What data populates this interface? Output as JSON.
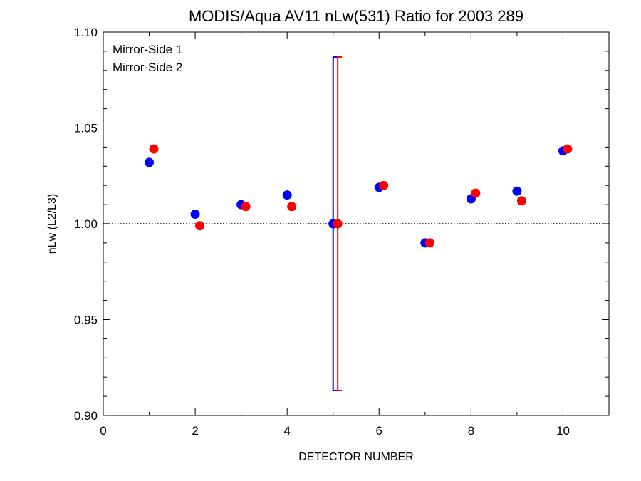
{
  "chart_data": {
    "type": "scatter",
    "title": "MODIS/Aqua AV11 nLw(531) Ratio for 2003 289",
    "xlabel": "DETECTOR NUMBER",
    "ylabel": "nLw (L2/L3)",
    "xlim": [
      0,
      11
    ],
    "ylim": [
      0.9,
      1.1
    ],
    "xticks": [
      0,
      2,
      4,
      6,
      8,
      10
    ],
    "xtick_labels": [
      "0",
      "2",
      "4",
      "6",
      "8",
      "10"
    ],
    "yticks": [
      0.9,
      0.95,
      1.0,
      1.05,
      1.1
    ],
    "ytick_labels": [
      "0.90",
      "0.95",
      "1.00",
      "1.05",
      "1.10"
    ],
    "reference_line": 1.0,
    "legend_position": "top-left",
    "series": [
      {
        "name": "Mirror-Side 1",
        "color": "#0000ff",
        "x": [
          1,
          2,
          3,
          4,
          5,
          6,
          7,
          8,
          9,
          10
        ],
        "y": [
          1.032,
          1.005,
          1.01,
          1.015,
          1.0,
          1.019,
          0.99,
          1.013,
          1.017,
          1.038
        ],
        "errorbar": {
          "x": 5,
          "low": 0.913,
          "high": 1.087
        }
      },
      {
        "name": "Mirror-Side 2",
        "color": "#ff0000",
        "x": [
          1.1,
          2.1,
          3.1,
          4.1,
          5.1,
          6.1,
          7.1,
          8.1,
          9.1,
          10.1
        ],
        "y": [
          1.039,
          0.999,
          1.009,
          1.009,
          1.0,
          1.02,
          0.99,
          1.016,
          1.012,
          1.039
        ],
        "errorbar": {
          "x": 5.1,
          "low": 0.913,
          "high": 1.087
        }
      }
    ]
  }
}
